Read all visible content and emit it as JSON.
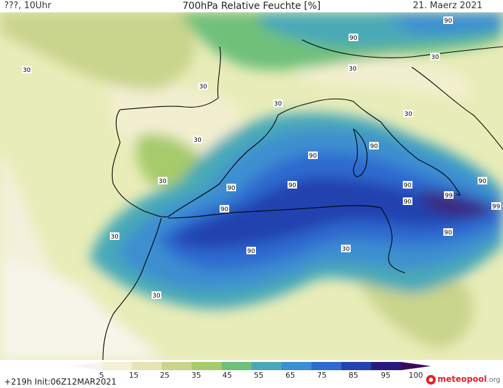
{
  "header": {
    "left": "???, 10Uhr",
    "title": "700hPa Relative Feuchte [%]",
    "date": "21. Maerz 2021"
  },
  "map": {
    "contour_labels": [
      "90",
      "90",
      "30",
      "30",
      "30",
      "30",
      "30",
      "30",
      "30",
      "90",
      "90",
      "90",
      "90",
      "90",
      "90",
      "99",
      "99",
      "30",
      "90",
      "90",
      "90",
      "30",
      "30",
      "90",
      "30"
    ]
  },
  "legend": {
    "ticks": [
      "5",
      "15",
      "25",
      "35",
      "45",
      "55",
      "65",
      "75",
      "85",
      "95",
      "100"
    ],
    "colors": [
      "#f4f4f4",
      "#f3f0d6",
      "#e6e4b4",
      "#c9d48c",
      "#a6cb6a",
      "#6fc07a",
      "#4aa9b7",
      "#3c8fd0",
      "#2d6bd0",
      "#2443b0",
      "#281c7a",
      "#3a0a5a"
    ]
  },
  "footer": {
    "run": "+219h  Init:06Z12MAR2021",
    "brand": "meteopool",
    "brand_tld": ".org"
  }
}
